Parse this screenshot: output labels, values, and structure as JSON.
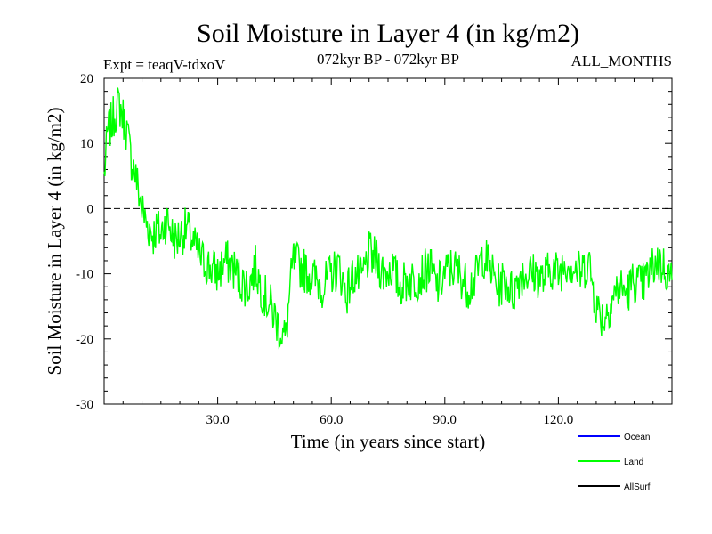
{
  "chart_data": {
    "type": "line",
    "title": "Soil Moisture in Layer 4 (in kg/m2)",
    "experiment_label": "Expt = teaqV-tdxoV",
    "period_label": "072kyr BP - 072kyr BP",
    "months_label": "ALL_MONTHS",
    "xlabel": "Time (in years since start)",
    "ylabel": "Soil Moisture in Layer 4 (in kg/m2)",
    "xlim": [
      0,
      150
    ],
    "ylim": [
      -30,
      20
    ],
    "xticks": [
      30,
      60,
      90,
      120
    ],
    "xtick_labels": [
      "30.0",
      "60.0",
      "90.0",
      "120.0"
    ],
    "yticks": [
      -30,
      -20,
      -10,
      0,
      10,
      20
    ],
    "ytick_labels": [
      "-30",
      "-20",
      "-10",
      "0",
      "10",
      "20"
    ],
    "zero_line": 0,
    "legend": [
      {
        "name": "Ocean",
        "color": "#0000ff"
      },
      {
        "name": "Land",
        "color": "#00ff00"
      },
      {
        "name": "AllSurf",
        "color": "#000000"
      }
    ],
    "series": [
      {
        "name": "Land",
        "color": "#00ff00",
        "x": [
          0,
          1,
          2,
          3,
          4,
          5,
          6,
          7,
          8,
          9,
          10,
          11,
          12,
          13,
          14,
          15,
          16,
          17,
          18,
          19,
          20,
          22,
          24,
          26,
          28,
          30,
          32,
          34,
          36,
          38,
          40,
          42,
          44,
          46,
          48,
          49,
          50,
          52,
          54,
          56,
          58,
          60,
          62,
          64,
          66,
          68,
          70,
          72,
          74,
          76,
          78,
          80,
          82,
          84,
          86,
          88,
          90,
          92,
          94,
          96,
          98,
          100,
          102,
          104,
          106,
          108,
          110,
          112,
          114,
          116,
          118,
          120,
          122,
          124,
          126,
          128,
          130,
          132,
          134,
          136,
          138,
          140,
          142,
          144,
          146,
          148,
          150
        ],
        "values": [
          5,
          12,
          13,
          15,
          16,
          14,
          12,
          8,
          6,
          3,
          0,
          -2,
          -3,
          -4,
          -3,
          -4,
          -2,
          -2,
          -4,
          -5,
          -4,
          -3,
          -6,
          -8,
          -9,
          -10,
          -8,
          -9,
          -11,
          -12,
          -9,
          -13,
          -15,
          -18,
          -20,
          -13,
          -8,
          -9,
          -10,
          -11,
          -12,
          -10,
          -9,
          -13,
          -10,
          -11,
          -7,
          -8,
          -10,
          -9,
          -12,
          -11,
          -11,
          -10,
          -9,
          -12,
          -10,
          -9,
          -10,
          -12,
          -11,
          -7,
          -9,
          -12,
          -11,
          -13,
          -10,
          -10,
          -10,
          -11,
          -9,
          -10,
          -8,
          -9,
          -10,
          -8,
          -15,
          -17,
          -14,
          -12,
          -13,
          -11,
          -12,
          -10,
          -8,
          -9,
          -11
        ]
      }
    ]
  }
}
